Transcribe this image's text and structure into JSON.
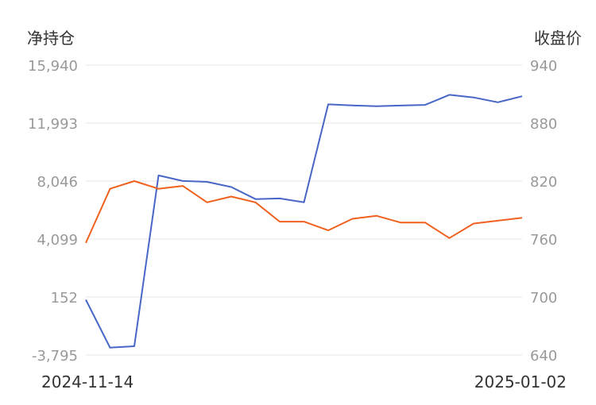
{
  "chart_data": {
    "type": "line",
    "left_axis_title": "净持仓",
    "right_axis_title": "收盘价",
    "left_ticks": [
      15940,
      11993,
      8046,
      4099,
      152,
      -3795
    ],
    "left_tick_labels": [
      "15,940",
      "11,993",
      "8,046",
      "4,099",
      "152",
      "-3,795"
    ],
    "right_ticks": [
      940,
      880,
      820,
      760,
      700,
      640
    ],
    "right_tick_labels": [
      "940",
      "880",
      "820",
      "760",
      "700",
      "640"
    ],
    "left_ylim": [
      -3795,
      15940
    ],
    "right_ylim": [
      640,
      940
    ],
    "x_start_label": "2024-11-14",
    "x_end_label": "2025-01-02",
    "grid": true,
    "series": [
      {
        "axis": "left",
        "color": "#4766c6",
        "values": [
          -30,
          -3300,
          -3200,
          8430,
          8050,
          7990,
          7640,
          6820,
          6860,
          6600,
          13270,
          13200,
          13140,
          13190,
          13230,
          13920,
          13740,
          13410,
          13820
        ]
      },
      {
        "axis": "right",
        "color": "#f0601e",
        "values": [
          756,
          812,
          820,
          812,
          815,
          798,
          804,
          798,
          778,
          778,
          769,
          781,
          784,
          777,
          777,
          761,
          776,
          779,
          782
        ]
      }
    ]
  }
}
